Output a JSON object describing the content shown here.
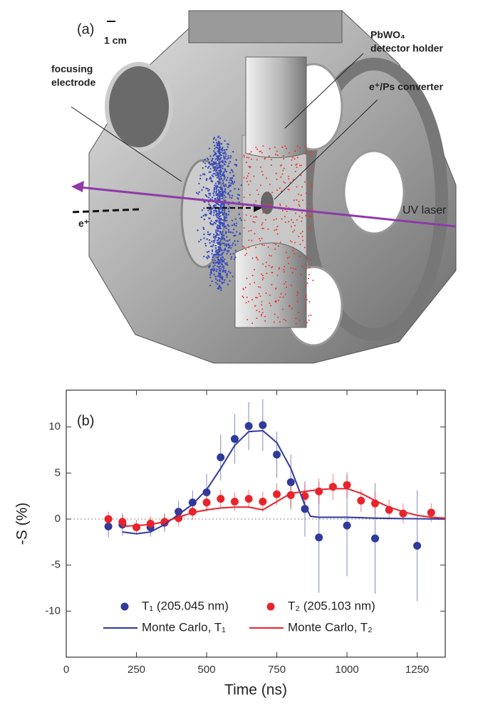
{
  "panel_a": {
    "label": "(a)",
    "scale": "1 cm",
    "focusing": "focusing",
    "electrode": "electrode",
    "holder_1": "PbWO₄",
    "holder_2": "detector holder",
    "converter": "e⁺/Ps converter",
    "positron": "e⁺",
    "laser": "UV laser"
  },
  "chart_data": {
    "type": "scatter",
    "label": "(b)",
    "xlabel": "Time (ns)",
    "ylabel": "-S (%)",
    "xlim": [
      0,
      1350
    ],
    "ylim": [
      -15,
      14
    ],
    "xticks": [
      0,
      250,
      500,
      750,
      1000,
      1250
    ],
    "yticks": [
      -10,
      -5,
      0,
      5,
      10
    ],
    "series": [
      {
        "name": "T₁ (205.045 nm)",
        "color": "#2e3a9c",
        "kind": "points",
        "x": [
          150,
          200,
          300,
          350,
          400,
          450,
          500,
          550,
          600,
          650,
          700,
          750,
          800,
          850,
          900,
          1000,
          1100,
          1250
        ],
        "values": [
          -0.8,
          -0.6,
          -0.9,
          -0.4,
          0.8,
          1.8,
          2.9,
          6.7,
          8.7,
          10.1,
          10.2,
          7.0,
          4.0,
          1.1,
          -2.0,
          -0.7,
          -2.1,
          -2.9
        ],
        "errors": [
          1.2,
          1.2,
          1.0,
          1.0,
          1.2,
          1.3,
          2.0,
          2.5,
          2.7,
          2.6,
          2.8,
          2.5,
          3.0,
          3.0,
          6.0,
          5.5,
          6.0,
          6.0
        ]
      },
      {
        "name": "T₂ (205.103 nm)",
        "color": "#e8242b",
        "kind": "points",
        "x": [
          150,
          200,
          250,
          300,
          350,
          400,
          450,
          500,
          550,
          600,
          650,
          700,
          750,
          800,
          850,
          900,
          950,
          1000,
          1050,
          1100,
          1150,
          1200,
          1300
        ],
        "values": [
          0.0,
          -0.3,
          -0.9,
          -0.5,
          -0.3,
          0.1,
          0.8,
          1.8,
          2.2,
          1.9,
          2.2,
          1.9,
          2.7,
          2.6,
          2.5,
          3.0,
          3.5,
          3.7,
          2.0,
          1.7,
          1.0,
          0.6,
          0.7
        ],
        "errors": [
          0.8,
          0.8,
          0.8,
          0.8,
          0.8,
          0.9,
          0.9,
          1.0,
          1.0,
          1.0,
          1.0,
          1.1,
          1.2,
          1.3,
          1.3,
          1.4,
          1.4,
          1.4,
          1.2,
          1.2,
          1.1,
          1.1,
          1.0
        ]
      },
      {
        "name": "Monte Carlo, T₁",
        "color": "#2e3a9c",
        "kind": "line",
        "x": [
          200,
          250,
          300,
          350,
          400,
          450,
          500,
          550,
          600,
          650,
          700,
          750,
          800,
          850,
          870,
          900,
          1000,
          1100,
          1200,
          1350
        ],
        "values": [
          -1.4,
          -1.6,
          -1.4,
          -0.6,
          0.5,
          1.6,
          3.2,
          5.5,
          8.0,
          9.5,
          9.6,
          8.3,
          5.5,
          1.5,
          0.3,
          0.2,
          0.2,
          0.1,
          0.05,
          0.0
        ]
      },
      {
        "name": "Monte Carlo, T₂",
        "color": "#e8242b",
        "kind": "line",
        "x": [
          200,
          250,
          300,
          350,
          400,
          450,
          500,
          550,
          600,
          650,
          700,
          750,
          800,
          850,
          900,
          950,
          1000,
          1050,
          1100,
          1150,
          1200,
          1250,
          1300,
          1350
        ],
        "values": [
          -0.8,
          -0.7,
          -0.6,
          -0.3,
          0.2,
          0.7,
          1.0,
          1.2,
          1.3,
          1.3,
          1.0,
          1.9,
          2.8,
          3.0,
          3.2,
          3.3,
          3.3,
          2.8,
          2.0,
          1.3,
          0.8,
          0.4,
          0.2,
          0.1
        ]
      }
    ]
  }
}
